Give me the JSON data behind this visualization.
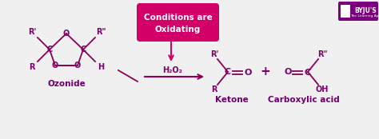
{
  "bg_color": "#f0f0f0",
  "bond_color": "#8b0057",
  "text_color": "#7b006b",
  "label_color": "#6b006b",
  "box_facecolor": "#d4006a",
  "box_text_color": "#ffffff",
  "byju_box_color": "#7b007b",
  "ozonide_label": "Ozonide",
  "ketone_label": "Ketone",
  "carboxylic_label": "Carboxylic acid",
  "conditions_line1": "Conditions are",
  "conditions_line2": "Oxidating",
  "h2o2_label": "H₂O₂",
  "plus_sign": "+",
  "figsize": [
    4.74,
    1.74
  ],
  "dpi": 100
}
